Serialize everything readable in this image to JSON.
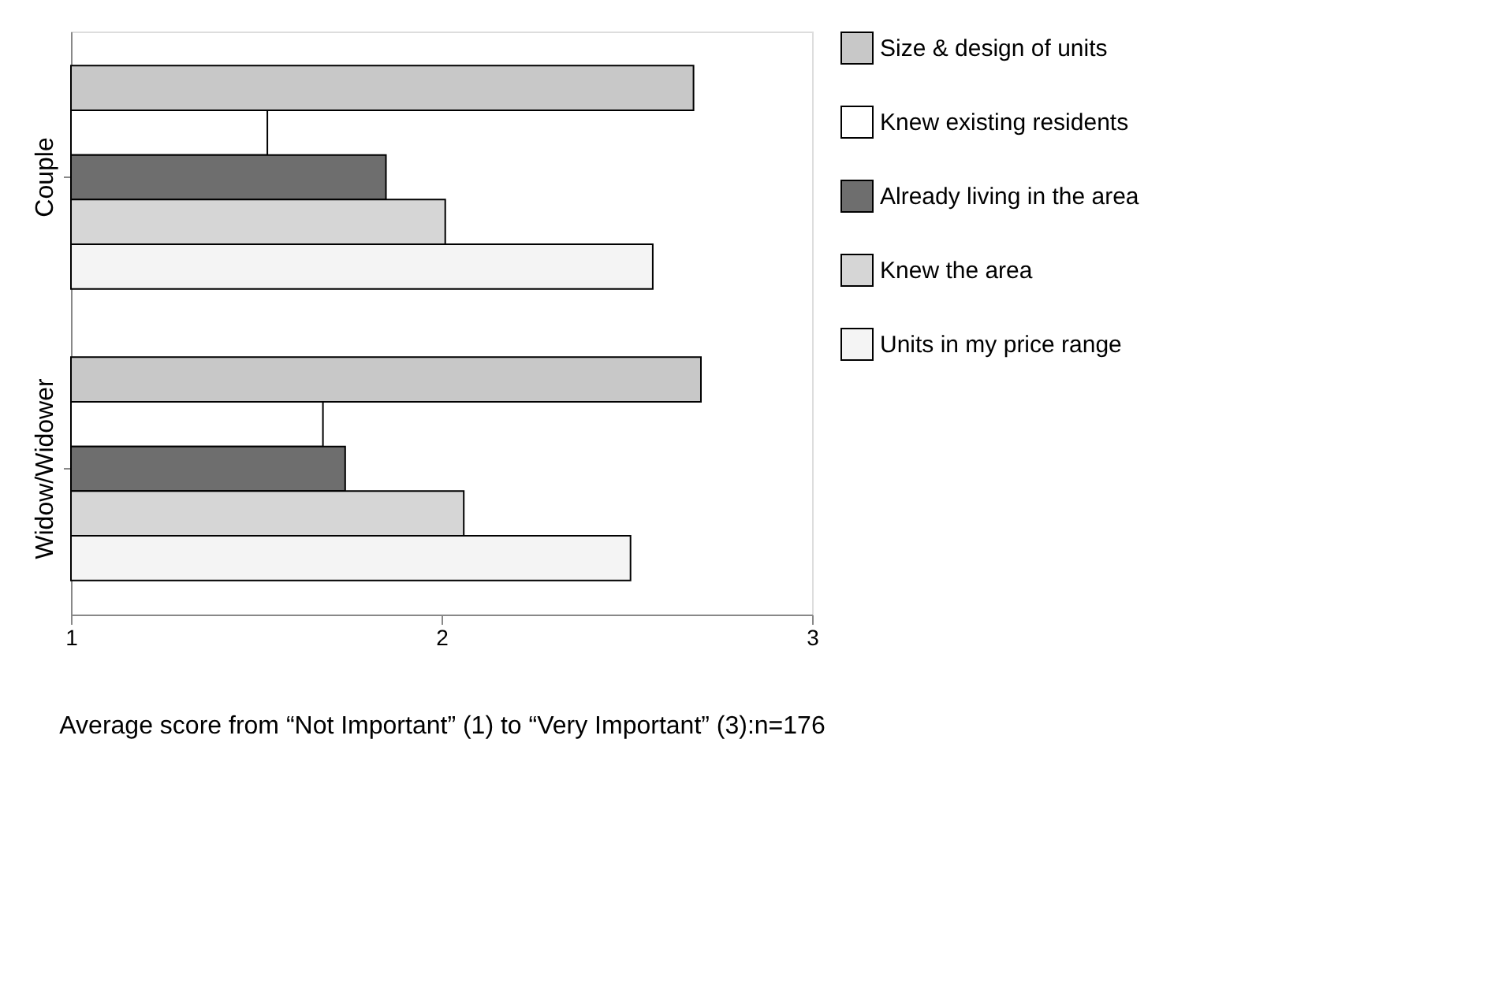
{
  "chart_data": {
    "type": "bar",
    "orientation": "horizontal",
    "categories": [
      "Couple",
      "Widow/Widower"
    ],
    "xlabel": "Average score from “Not Important” (1) to “Very Important” (3):n=176",
    "xlim": [
      1,
      3
    ],
    "xticks": [
      1,
      2,
      3
    ],
    "legend": "right",
    "series": [
      {
        "name": "Size & design of units",
        "color": "#c8c8c8",
        "values": [
          2.68,
          2.7
        ]
      },
      {
        "name": "Knew existing residents",
        "color": "#ffffff",
        "values": [
          1.53,
          1.68
        ]
      },
      {
        "name": "Already living in the area",
        "color": "#6e6e6e",
        "values": [
          1.85,
          1.74
        ]
      },
      {
        "name": "Knew the area",
        "color": "#d6d6d6",
        "values": [
          2.01,
          2.06
        ]
      },
      {
        "name": "Units in my price range",
        "color": "#f4f4f4",
        "values": [
          2.57,
          2.51
        ]
      }
    ]
  }
}
